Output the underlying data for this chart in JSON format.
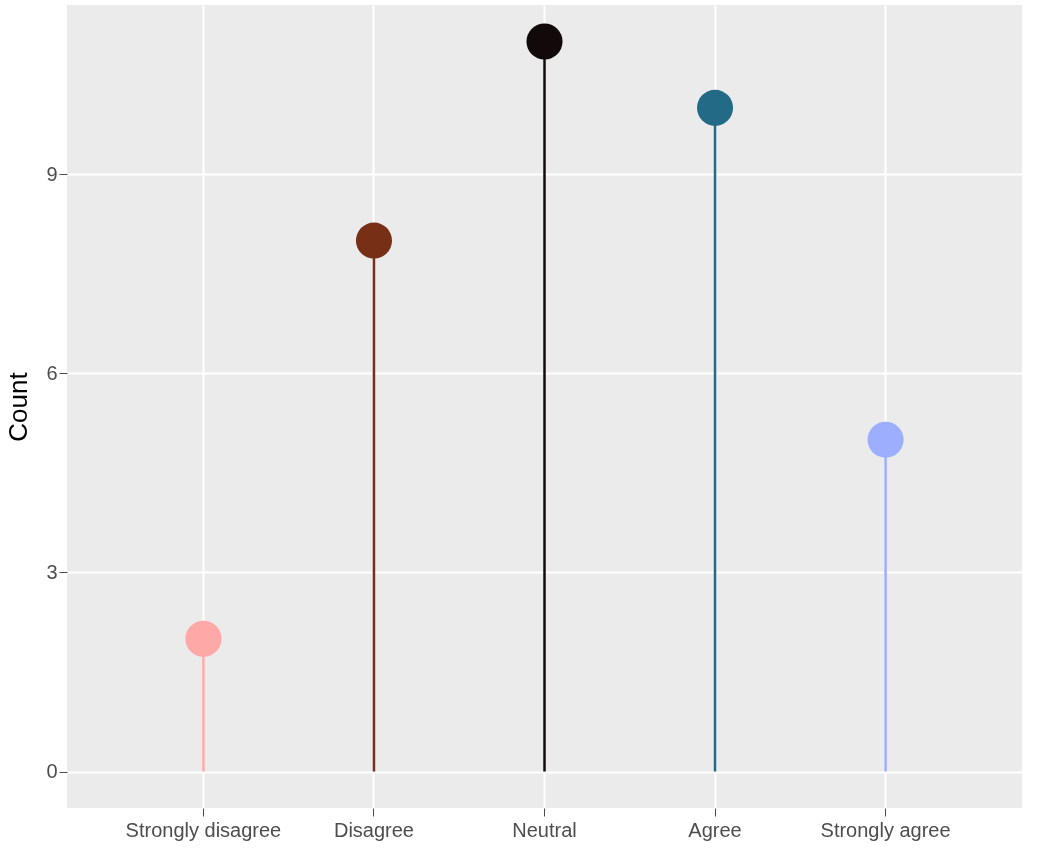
{
  "chart_data": {
    "type": "lollipop",
    "ylabel": "Count",
    "categories": [
      "Strongly disagree",
      "Disagree",
      "Neutral",
      "Agree",
      "Strongly agree"
    ],
    "values": [
      2,
      8,
      11,
      10,
      5
    ],
    "colors": [
      "#ffa8a8",
      "#772f16",
      "#120a0a",
      "#236a86",
      "#9daeff"
    ],
    "ylim": [
      -0.55,
      11.55
    ],
    "yticks": [
      0,
      3,
      6,
      9
    ],
    "grid": true
  }
}
